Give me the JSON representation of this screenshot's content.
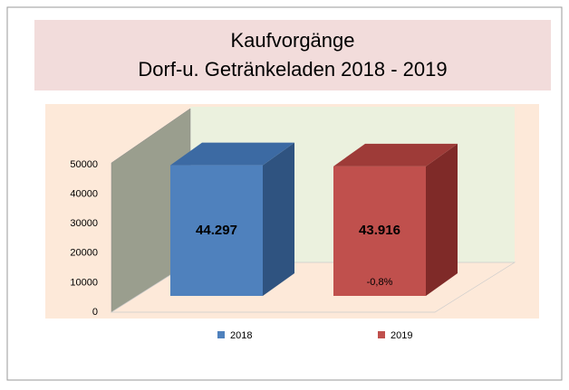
{
  "chart_data": {
    "type": "bar3d",
    "title": [
      "Kaufvorgänge",
      "Dorf-u. Getränkeladen 2018 - 2019"
    ],
    "categories": [
      null
    ],
    "series": [
      {
        "name": "2018",
        "color": "#4f81bd",
        "side_color": "#2f5380",
        "top_color": "#3c6aa3",
        "values": [
          44297
        ],
        "value_labels": [
          "44.297"
        ]
      },
      {
        "name": "2019",
        "color": "#c0504d",
        "side_color": "#7f2a28",
        "top_color": "#9e3b38",
        "values": [
          43916
        ],
        "value_labels": [
          "43.916"
        ]
      }
    ],
    "annotation": "-0,8%",
    "ylim": [
      0,
      50000
    ],
    "yticks": [
      0,
      10000,
      20000,
      30000,
      40000,
      50000
    ],
    "grid": false,
    "legend": "bottom"
  }
}
